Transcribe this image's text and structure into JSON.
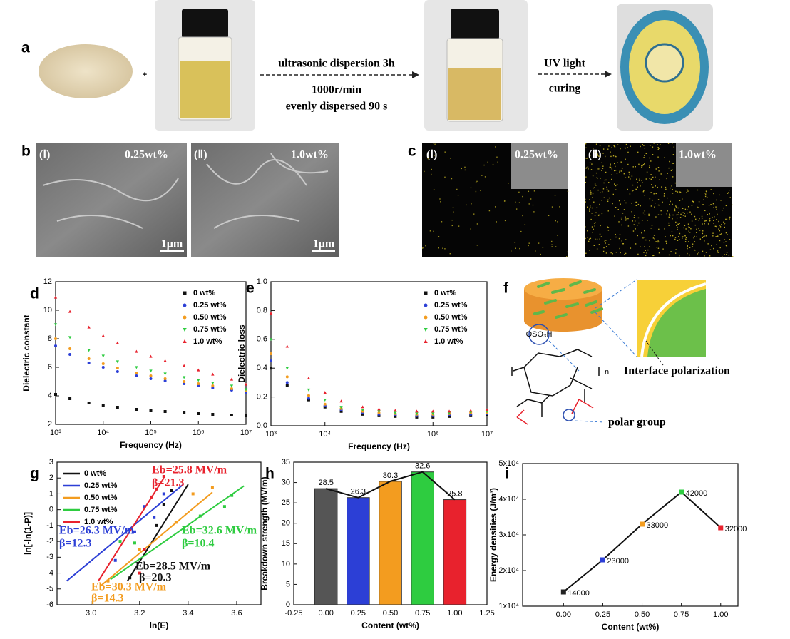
{
  "panel_labels": [
    "a",
    "b",
    "c",
    "d",
    "e",
    "f",
    "g",
    "h",
    "i"
  ],
  "process": {
    "plus": "+",
    "step1": "ultrasonic dispersion 3h",
    "step2": "1000r/min",
    "step3": "evenly dispersed  90 s",
    "cure1": "UV light",
    "cure2": "curing"
  },
  "sem": [
    {
      "index": "(Ⅰ)",
      "content": "0.25wt%",
      "scale": "1μm"
    },
    {
      "index": "(Ⅱ)",
      "content": "1.0wt%",
      "scale": "1μm"
    }
  ],
  "eds": [
    {
      "index": "(Ⅰ)",
      "content": "0.25wt%"
    },
    {
      "index": "(Ⅱ)",
      "content": "1.0wt%"
    }
  ],
  "schematic": {
    "group": "OSO₃H",
    "repeat": "n",
    "interface": "Interface polarization",
    "polar": "polar group"
  },
  "chart_data": [
    {
      "type": "scatter",
      "xlabel": "Frequency (Hz)",
      "ylabel": "Dielectric constant",
      "xscale": "log",
      "legend": "upper right",
      "x": [
        1000,
        2000,
        5000,
        10000,
        20000,
        50000,
        100000,
        200000,
        500000,
        1000000,
        2000000,
        5000000,
        10000000
      ],
      "xlim": [
        1000,
        10000000
      ],
      "xticks": [
        {
          "value": 1000,
          "label": "10³"
        },
        {
          "value": 10000,
          "label": "10⁴"
        },
        {
          "value": 100000,
          "label": "10⁵"
        },
        {
          "value": 1000000,
          "label": "10⁶"
        },
        {
          "value": 10000000,
          "label": "10⁷"
        }
      ],
      "ylim": [
        2,
        12
      ],
      "yticks": [
        2,
        4,
        6,
        8,
        10,
        12
      ],
      "series": [
        {
          "name": "0 wt%",
          "color": "#111111",
          "marker": "square",
          "values": [
            4.1,
            3.8,
            3.5,
            3.35,
            3.2,
            3.05,
            2.95,
            2.9,
            2.8,
            2.75,
            2.7,
            2.65,
            2.6
          ]
        },
        {
          "name": "0.25 wt%",
          "color": "#2c3fd6",
          "marker": "circle",
          "values": [
            7.5,
            6.9,
            6.3,
            6.0,
            5.7,
            5.4,
            5.2,
            5.05,
            4.85,
            4.7,
            4.55,
            4.4,
            4.25
          ]
        },
        {
          "name": "0.50 wt%",
          "color": "#f39c1f",
          "marker": "circle",
          "values": [
            8.0,
            7.3,
            6.6,
            6.25,
            5.95,
            5.6,
            5.4,
            5.2,
            5.0,
            4.85,
            4.7,
            4.5,
            4.35
          ]
        },
        {
          "name": "0.75 wt%",
          "color": "#2ecc40",
          "marker": "triangle-down",
          "values": [
            9.0,
            8.1,
            7.2,
            6.8,
            6.4,
            6.0,
            5.75,
            5.55,
            5.3,
            5.1,
            4.9,
            4.7,
            4.45
          ]
        },
        {
          "name": "1.0 wt%",
          "color": "#e8222d",
          "marker": "triangle-up",
          "values": [
            10.9,
            9.9,
            8.8,
            8.2,
            7.7,
            7.1,
            6.75,
            6.45,
            6.1,
            5.8,
            5.5,
            5.15,
            4.8
          ]
        }
      ]
    },
    {
      "type": "scatter",
      "xlabel": "Frequency (Hz)",
      "ylabel": "Dielectric loss",
      "xscale": "log",
      "legend": "upper right",
      "x": [
        1000,
        2000,
        5000,
        10000,
        20000,
        50000,
        100000,
        200000,
        500000,
        1000000,
        2000000,
        5000000,
        10000000
      ],
      "xlim": [
        1000,
        10000000
      ],
      "xticks": [
        {
          "value": 1000,
          "label": "10³"
        },
        {
          "value": 10000,
          "label": "10⁴"
        },
        {
          "value": 1000000,
          "label": "10⁶"
        },
        {
          "value": 10000000,
          "label": "10⁷"
        }
      ],
      "ylim": [
        0,
        1
      ],
      "yticks": [
        {
          "value": 0,
          "label": "0.0"
        },
        0.2,
        0.4,
        0.6,
        0.8,
        {
          "value": 1,
          "label": "1.0"
        }
      ],
      "series": [
        {
          "name": "0 wt%",
          "color": "#111111",
          "marker": "square",
          "values": [
            0.4,
            0.28,
            0.18,
            0.13,
            0.1,
            0.08,
            0.07,
            0.065,
            0.06,
            0.06,
            0.065,
            0.07,
            0.075
          ]
        },
        {
          "name": "0.25 wt%",
          "color": "#2c3fd6",
          "marker": "circle",
          "values": [
            0.45,
            0.3,
            0.19,
            0.14,
            0.11,
            0.09,
            0.08,
            0.075,
            0.07,
            0.07,
            0.075,
            0.08,
            0.085
          ]
        },
        {
          "name": "0.50 wt%",
          "color": "#f39c1f",
          "marker": "circle",
          "values": [
            0.5,
            0.34,
            0.21,
            0.15,
            0.12,
            0.1,
            0.09,
            0.085,
            0.08,
            0.08,
            0.085,
            0.09,
            0.09
          ]
        },
        {
          "name": "0.75 wt%",
          "color": "#2ecc40",
          "marker": "triangle-down",
          "values": [
            0.6,
            0.4,
            0.25,
            0.18,
            0.13,
            0.11,
            0.1,
            0.09,
            0.085,
            0.085,
            0.09,
            0.095,
            0.1
          ]
        },
        {
          "name": "1.0 wt%",
          "color": "#e8222d",
          "marker": "triangle-up",
          "values": [
            0.78,
            0.55,
            0.33,
            0.23,
            0.17,
            0.13,
            0.115,
            0.105,
            0.1,
            0.1,
            0.1,
            0.105,
            0.11
          ]
        }
      ]
    },
    {
      "type": "weibull",
      "xlabel": "ln(E)",
      "ylabel": "ln[-ln(1-P)]",
      "legend": "upper left",
      "xlim": [
        2.86,
        3.7
      ],
      "xticks": [
        {
          "value": 3,
          "label": "3.0"
        },
        3.2,
        3.4,
        3.6
      ],
      "ylim": [
        -6,
        3
      ],
      "yticks": [
        -6,
        -5,
        -4,
        -3,
        -2,
        -1,
        0,
        1,
        2,
        3
      ],
      "series": [
        {
          "name": "0 wt%",
          "color": "#111111",
          "x": [
            3.16,
            3.22,
            3.27,
            3.3,
            3.33
          ],
          "values": [
            -4.3,
            -2.5,
            -1.0,
            0.3,
            1.2
          ],
          "fit_x": [
            3.15,
            3.4
          ],
          "fit_y": [
            -4.5,
            1.6
          ]
        },
        {
          "name": "0.25 wt%",
          "color": "#2c3fd6",
          "x": [
            3.1,
            3.18,
            3.22,
            3.26,
            3.3
          ],
          "values": [
            -3.2,
            -1.4,
            0.2,
            -0.5,
            1.0
          ],
          "fit_x": [
            2.9,
            3.38
          ],
          "fit_y": [
            -4.5,
            1.6
          ]
        },
        {
          "name": "0.50 wt%",
          "color": "#f39c1f",
          "x": [
            3.07,
            3.2,
            3.35,
            3.42,
            3.5
          ],
          "values": [
            -4.5,
            -2.5,
            -0.8,
            1.0,
            1.4
          ],
          "fit_x": [
            3.04,
            3.5
          ],
          "fit_y": [
            -4.8,
            1.1
          ]
        },
        {
          "name": "0.75 wt%",
          "color": "#2ecc40",
          "x": [
            3.12,
            3.18,
            3.45,
            3.55,
            3.58
          ],
          "values": [
            -2,
            -2.1,
            -0.4,
            0.2,
            0.9
          ],
          "fit_x": [
            3.08,
            3.63
          ],
          "fit_y": [
            -4.4,
            1.5
          ]
        },
        {
          "name": "1.0 wt%",
          "color": "#e8222d",
          "x": [
            3.2,
            3.22,
            3.25,
            3.27,
            3.3
          ],
          "values": [
            -4,
            -2.5,
            0.8,
            1.3,
            2.1
          ],
          "fit_x": [
            3.03,
            3.3
          ],
          "fit_y": [
            -4.5,
            2.0
          ]
        }
      ],
      "annotations": [
        {
          "text": "Eb=25.8 MV/m",
          "color": "#e8222d"
        },
        {
          "text": "β=21.3",
          "color": "#e8222d"
        },
        {
          "text": "Eb=26.3 MV/m",
          "color": "#2c3fd6"
        },
        {
          "text": "β=12.3",
          "color": "#2c3fd6"
        },
        {
          "text": "Eb=32.6 MV/m",
          "color": "#2ecc40"
        },
        {
          "text": "β=10.4",
          "color": "#2ecc40"
        },
        {
          "text": "Eb=28.5 MV/m",
          "color": "#111111"
        },
        {
          "text": "β=20.3",
          "color": "#111111"
        },
        {
          "text": "Eb=30.3 MV/m",
          "color": "#f39c1f"
        },
        {
          "text": "β=14.3",
          "color": "#f39c1f"
        }
      ]
    },
    {
      "type": "bar",
      "xlabel": "Content (wt%)",
      "ylabel": "Breakdown strength (MV/m)",
      "xlim": [
        -0.25,
        1.25
      ],
      "xticks": [
        -0.25,
        {
          "value": 0,
          "label": "0.00"
        },
        0.25,
        {
          "value": 0.5,
          "label": "0.50"
        },
        0.75,
        {
          "value": 1,
          "label": "1.00"
        },
        1.25
      ],
      "ylim": [
        0,
        35
      ],
      "yticks": [
        0,
        5,
        10,
        15,
        20,
        25,
        30,
        35
      ],
      "x": [
        0,
        0.25,
        0.5,
        0.75,
        1
      ],
      "values": [
        28.5,
        26.3,
        30.3,
        32.6,
        25.8
      ],
      "colors": [
        "#555555",
        "#2c3fd6",
        "#f39c1f",
        "#2ecc40",
        "#e8222d"
      ],
      "line_color": "#111111"
    },
    {
      "type": "line",
      "xlabel": "Content (wt%)",
      "ylabel": "Energy densities (J/m³)",
      "xlim": [
        -0.26,
        1.11
      ],
      "xticks": [
        {
          "value": 0,
          "label": "0.00"
        },
        0.25,
        {
          "value": 0.5,
          "label": "0.50"
        },
        0.75,
        {
          "value": 1,
          "label": "1.00"
        }
      ],
      "ylim": [
        10000,
        50000
      ],
      "yticks": [
        {
          "value": 10000,
          "label": "1x10⁴"
        },
        {
          "value": 20000,
          "label": "2x10⁴"
        },
        {
          "value": 30000,
          "label": "3x10⁴"
        },
        {
          "value": 40000,
          "label": "4x10⁴"
        },
        {
          "value": 50000,
          "label": "5x10⁴"
        }
      ],
      "x": [
        0,
        0.25,
        0.5,
        0.75,
        1
      ],
      "values": [
        14000,
        23000,
        33000,
        42000,
        32000
      ],
      "colors": [
        "#222222",
        "#2c3fd6",
        "#f39c1f",
        "#2ecc40",
        "#e8222d"
      ],
      "line_color": "#111111"
    }
  ]
}
